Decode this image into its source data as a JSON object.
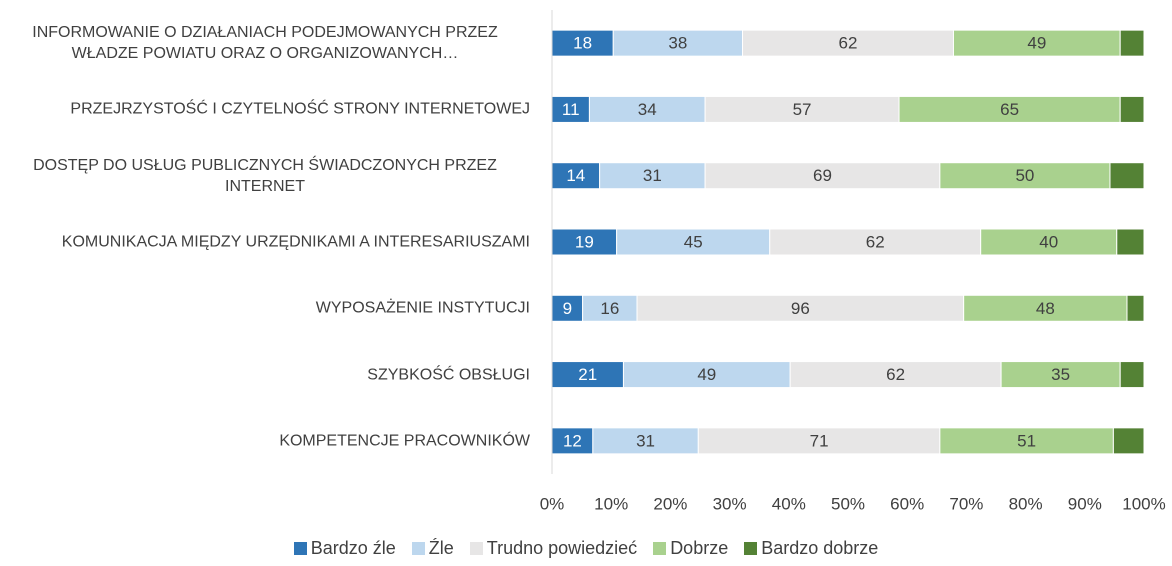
{
  "chart_data": {
    "type": "stacked_bar_100",
    "categories": [
      "INFORMOWANIE O DZIAŁANIACH PODEJMOWANYCH PRZEZ WŁADZE POWIATU ORAZ O ORGANIZOWANYCH…",
      "PRZEJRZYSTOŚĆ I CZYTELNOŚĆ STRONY INTERNETOWEJ",
      "DOSTĘP DO USŁUG PUBLICZNYCH ŚWIADCZONYCH PRZEZ INTERNET",
      "KOMUNIKACJA MIĘDZY URZĘDNIKAMI A INTERESARIUSZAMI",
      "WYPOSAŻENIE INSTYTUCJI",
      "SZYBKOŚĆ OBSŁUGI",
      "KOMPETENCJE PRACOWNIKÓW"
    ],
    "series": [
      {
        "name": "Bardzo źle",
        "color": "#2e75b6",
        "label_color": "#ffffff",
        "values": [
          18,
          11,
          14,
          19,
          9,
          21,
          12
        ]
      },
      {
        "name": "Źle",
        "color": "#bdd7ee",
        "label_color": "#404040",
        "values": [
          38,
          34,
          31,
          45,
          16,
          49,
          31
        ]
      },
      {
        "name": "Trudno powiedzieć",
        "color": "#e7e6e6",
        "label_color": "#404040",
        "values": [
          62,
          57,
          69,
          62,
          96,
          62,
          71
        ]
      },
      {
        "name": "Dobrze",
        "color": "#a9d18e",
        "label_color": "#404040",
        "values": [
          49,
          65,
          50,
          40,
          48,
          35,
          51
        ]
      },
      {
        "name": "Bardzo dobrze",
        "color": "#548235",
        "label_color": "#ffffff",
        "data_labels": false,
        "values": [
          7,
          7,
          10,
          8,
          5,
          7,
          9
        ]
      }
    ],
    "xlim": [
      0,
      100
    ],
    "xticks": [
      {
        "value": 0,
        "label": "0%"
      },
      {
        "value": 10,
        "label": "10%"
      },
      {
        "value": 20,
        "label": "20%"
      },
      {
        "value": 30,
        "label": "30%"
      },
      {
        "value": 40,
        "label": "40%"
      },
      {
        "value": 50,
        "label": "50%"
      },
      {
        "value": 60,
        "label": "60%"
      },
      {
        "value": 70,
        "label": "70%"
      },
      {
        "value": 80,
        "label": "80%"
      },
      {
        "value": 90,
        "label": "90%"
      },
      {
        "value": 100,
        "label": "100%"
      }
    ],
    "grid": false,
    "legend": "bottom"
  }
}
